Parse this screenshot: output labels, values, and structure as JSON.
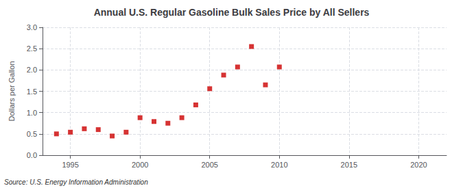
{
  "chart_data": {
    "type": "scatter",
    "title": "Annual U.S. Regular Gasoline Bulk Sales Price by All Sellers",
    "ylabel": "Dollars per Gallon",
    "annotations": [
      "Source: U.S. Energy Information Administration"
    ],
    "x": [
      1994,
      1995,
      1996,
      1997,
      1998,
      1999,
      2000,
      2001,
      2002,
      2003,
      2004,
      2005,
      2006,
      2007,
      2008,
      2009,
      2010
    ],
    "values": [
      0.5,
      0.54,
      0.62,
      0.6,
      0.45,
      0.54,
      0.88,
      0.79,
      0.75,
      0.88,
      1.18,
      1.56,
      1.88,
      2.07,
      2.55,
      1.65,
      2.07
    ],
    "color": "#cc0000",
    "marker": "square",
    "xlim": [
      1993,
      2022
    ],
    "ylim": [
      0.0,
      3.0
    ],
    "xticks": [
      1995,
      2000,
      2005,
      2010,
      2015,
      2020
    ],
    "yticks": [
      {
        "value": 0,
        "label": "0.0"
      },
      0.5,
      {
        "value": 1,
        "label": "1.0"
      },
      1.5,
      {
        "value": 2,
        "label": "2.0"
      },
      2.5,
      {
        "value": 3,
        "label": "3.0"
      }
    ],
    "grid": true
  }
}
